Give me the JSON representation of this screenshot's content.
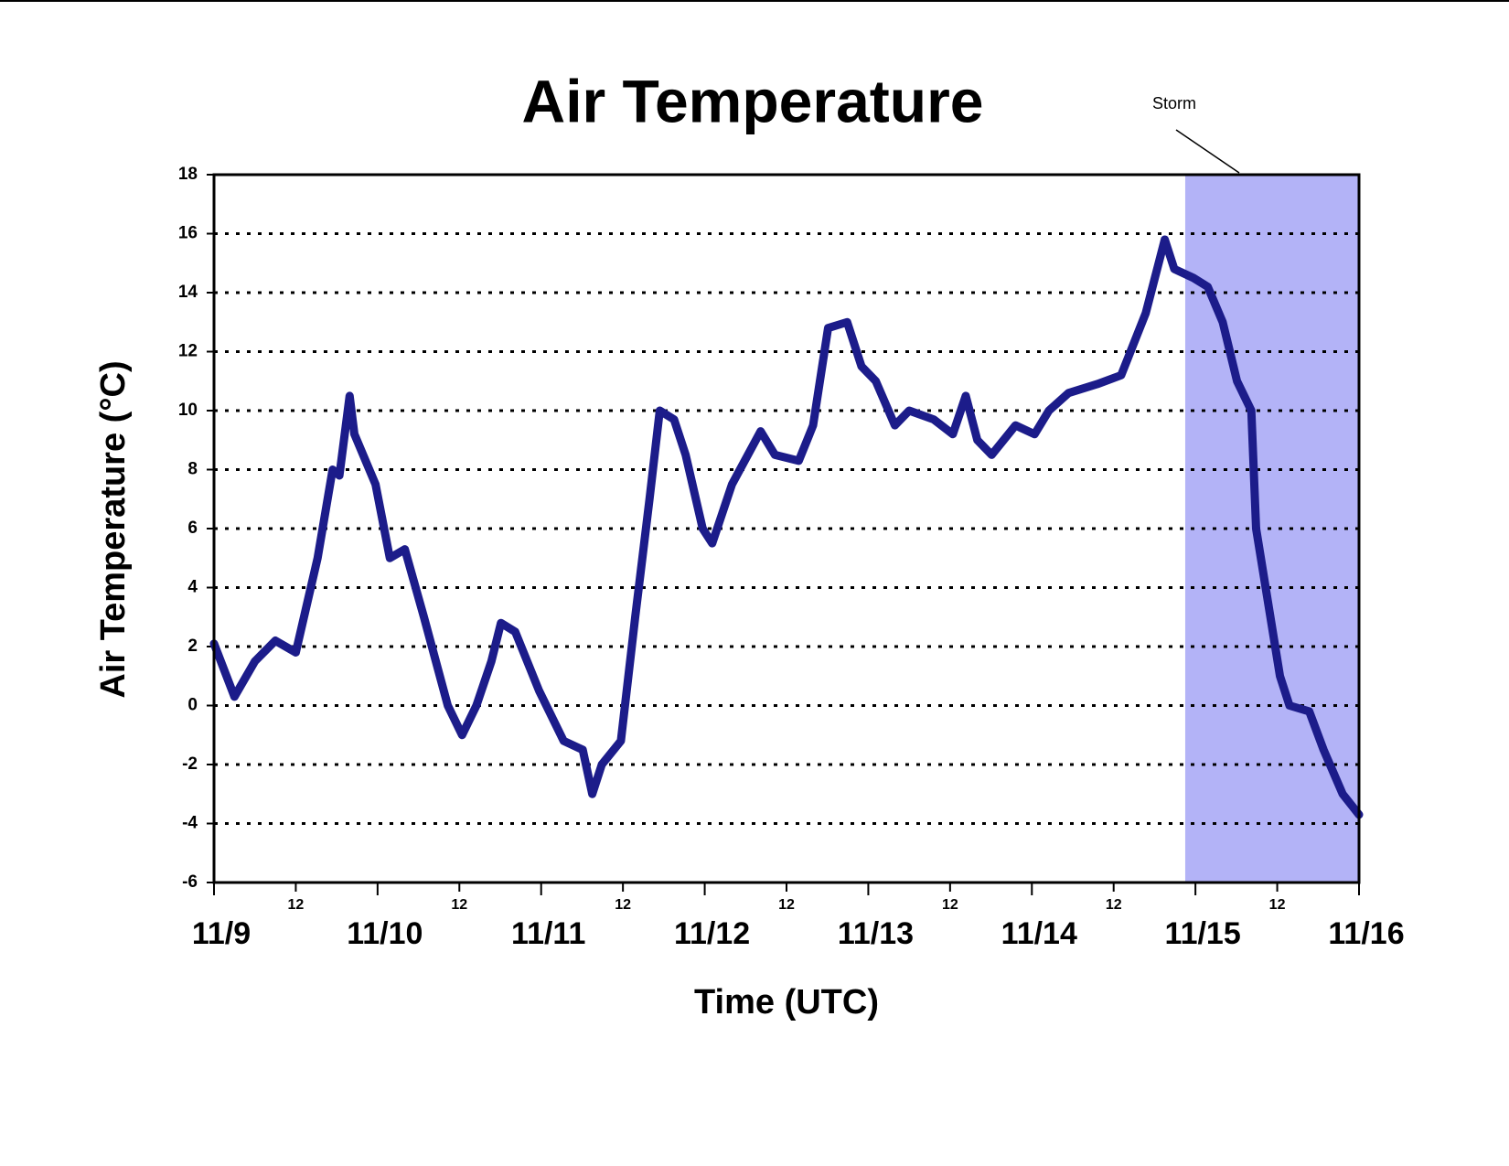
{
  "chart_data": {
    "type": "line",
    "title": "Air Temperature",
    "x_label": "Time (UTC)",
    "y_label": "Air Temperature (°C)",
    "annotation": {
      "label": "Storm",
      "x": [
        142.5,
        168
      ],
      "color": "#b3b3f7"
    },
    "xlim": [
      0,
      168
    ],
    "ylim": [
      -6,
      18
    ],
    "xticks": [
      {
        "value": 0,
        "label": "11/9"
      },
      {
        "value": 24,
        "label": "11/10"
      },
      {
        "value": 48,
        "label": "11/11"
      },
      {
        "value": 72,
        "label": "11/12"
      },
      {
        "value": 96,
        "label": "11/13"
      },
      {
        "value": 120,
        "label": "11/14"
      },
      {
        "value": 144,
        "label": "11/15"
      },
      {
        "value": 168,
        "label": "11/16"
      }
    ],
    "xminorticks": [
      12,
      {
        "value": 36,
        "label": "12"
      },
      {
        "value": 60,
        "label": "12"
      },
      {
        "value": 84,
        "label": "12"
      },
      {
        "value": 108,
        "label": "12"
      },
      {
        "value": 132,
        "label": "12"
      },
      {
        "value": 156,
        "label": "12"
      }
    ],
    "yticks": [
      -6,
      -4,
      -2,
      0,
      2,
      4,
      6,
      8,
      10,
      12,
      14,
      16,
      18
    ],
    "grid": true,
    "series": [
      {
        "name": "Air Temperature",
        "color": "#1c1c8a",
        "x": [
          0,
          3,
          6,
          9,
          12,
          15.2,
          17.4,
          18.4,
          19.9,
          20.6,
          23.7,
          25.8,
          28,
          30.8,
          34.3,
          36.4,
          38.5,
          40.7,
          42.1,
          44.2,
          47.7,
          51.3,
          54.1,
          55.5,
          56.9,
          59.7,
          61.8,
          63.9,
          65.4,
          67.5,
          69.2,
          71.7,
          73.1,
          76,
          80.2,
          82.3,
          85.8,
          87.9,
          90.1,
          92.9,
          95,
          97.1,
          99.9,
          102,
          105.6,
          108.4,
          110.3,
          112,
          114.1,
          117.6,
          120.4,
          122.5,
          125.4,
          129.6,
          133.1,
          136.7,
          139.5,
          140.9,
          143.7,
          145.8,
          148,
          150.1,
          152.2,
          152.9,
          154.3,
          156.4,
          157.8,
          160.7,
          162.8,
          165.6,
          168
        ],
        "values": [
          2.1,
          0.3,
          1.5,
          2.2,
          1.8,
          5,
          8,
          7.8,
          10.5,
          9.2,
          7.5,
          5,
          5.3,
          3,
          0,
          -1,
          0,
          1.5,
          2.8,
          2.5,
          0.5,
          -1.2,
          -1.5,
          -3,
          -2,
          -1.2,
          3,
          7,
          10,
          9.7,
          8.5,
          6,
          5.5,
          7.5,
          9.3,
          8.5,
          8.3,
          9.5,
          12.8,
          13,
          11.5,
          11,
          9.5,
          10,
          9.7,
          9.2,
          10.5,
          9,
          8.5,
          9.5,
          9.2,
          10,
          10.6,
          10.9,
          11.2,
          13.3,
          15.8,
          14.8,
          14.5,
          14.2,
          13,
          11,
          10,
          6,
          4,
          1,
          0,
          -0.2,
          -1.5,
          -3,
          -3.7
        ]
      }
    ]
  }
}
